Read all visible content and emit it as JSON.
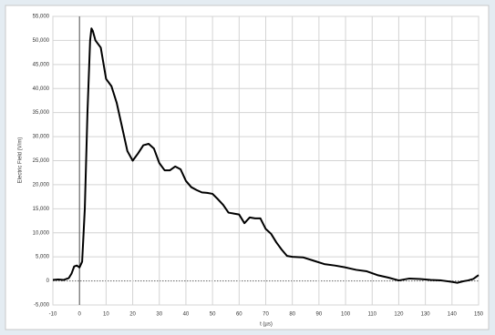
{
  "chart_data": {
    "type": "line",
    "x_label": "t (µs)",
    "y_label": "Electric Field (V/m)",
    "x": [
      -10,
      -8,
      -6,
      -4,
      -3,
      -2,
      -1,
      0,
      1,
      2,
      3,
      4,
      4.5,
      5,
      6,
      8,
      10,
      12,
      14,
      16,
      18,
      20,
      22,
      24,
      26,
      28,
      30,
      32,
      34,
      36,
      38,
      40,
      42,
      44,
      46,
      48,
      50,
      52,
      54,
      56,
      58,
      60,
      62,
      64,
      66,
      68,
      70,
      72,
      74,
      76,
      78,
      80,
      84,
      88,
      92,
      96,
      100,
      104,
      108,
      112,
      116,
      120,
      124,
      128,
      132,
      136,
      140,
      142,
      144,
      146,
      148,
      150
    ],
    "series": [
      {
        "name": "Electric Field",
        "color": "#000000",
        "values": [
          200,
          300,
          200,
          600,
          1500,
          3000,
          3200,
          2800,
          4000,
          15000,
          35000,
          50000,
          52500,
          52000,
          50000,
          48500,
          42000,
          40500,
          37000,
          32000,
          27000,
          25000,
          26500,
          28200,
          28500,
          27500,
          24500,
          23000,
          23000,
          23800,
          23200,
          20800,
          19500,
          18900,
          18400,
          18300,
          18100,
          17000,
          15800,
          14200,
          14000,
          13800,
          12000,
          13200,
          13000,
          13000,
          10800,
          9800,
          8000,
          6500,
          5200,
          5000,
          4900,
          4200,
          3500,
          3200,
          2800,
          2300,
          2000,
          1200,
          700,
          100,
          500,
          400,
          200,
          100,
          -200,
          -400,
          -100,
          100,
          400,
          1200
        ]
      }
    ],
    "xlim": [
      -10,
      150
    ],
    "xticks": [
      -10,
      0,
      10,
      20,
      30,
      40,
      50,
      60,
      70,
      80,
      90,
      100,
      110,
      120,
      130,
      140,
      150
    ],
    "ylim": [
      -5000,
      55000
    ],
    "yticks": [
      {
        "value": -5000,
        "label": "-5,000"
      },
      0,
      {
        "value": 5000,
        "label": "5,000"
      },
      {
        "value": 10000,
        "label": "10,000"
      },
      {
        "value": 15000,
        "label": "15,000"
      },
      {
        "value": 20000,
        "label": "20,000"
      },
      {
        "value": 25000,
        "label": "25,000"
      },
      {
        "value": 30000,
        "label": "30,000"
      },
      {
        "value": 35000,
        "label": "35,000"
      },
      {
        "value": 40000,
        "label": "40,000"
      },
      {
        "value": 45000,
        "label": "45,000"
      },
      {
        "value": 50000,
        "label": "50,000"
      },
      {
        "value": 55000,
        "label": "55,000"
      }
    ],
    "grid": true
  }
}
